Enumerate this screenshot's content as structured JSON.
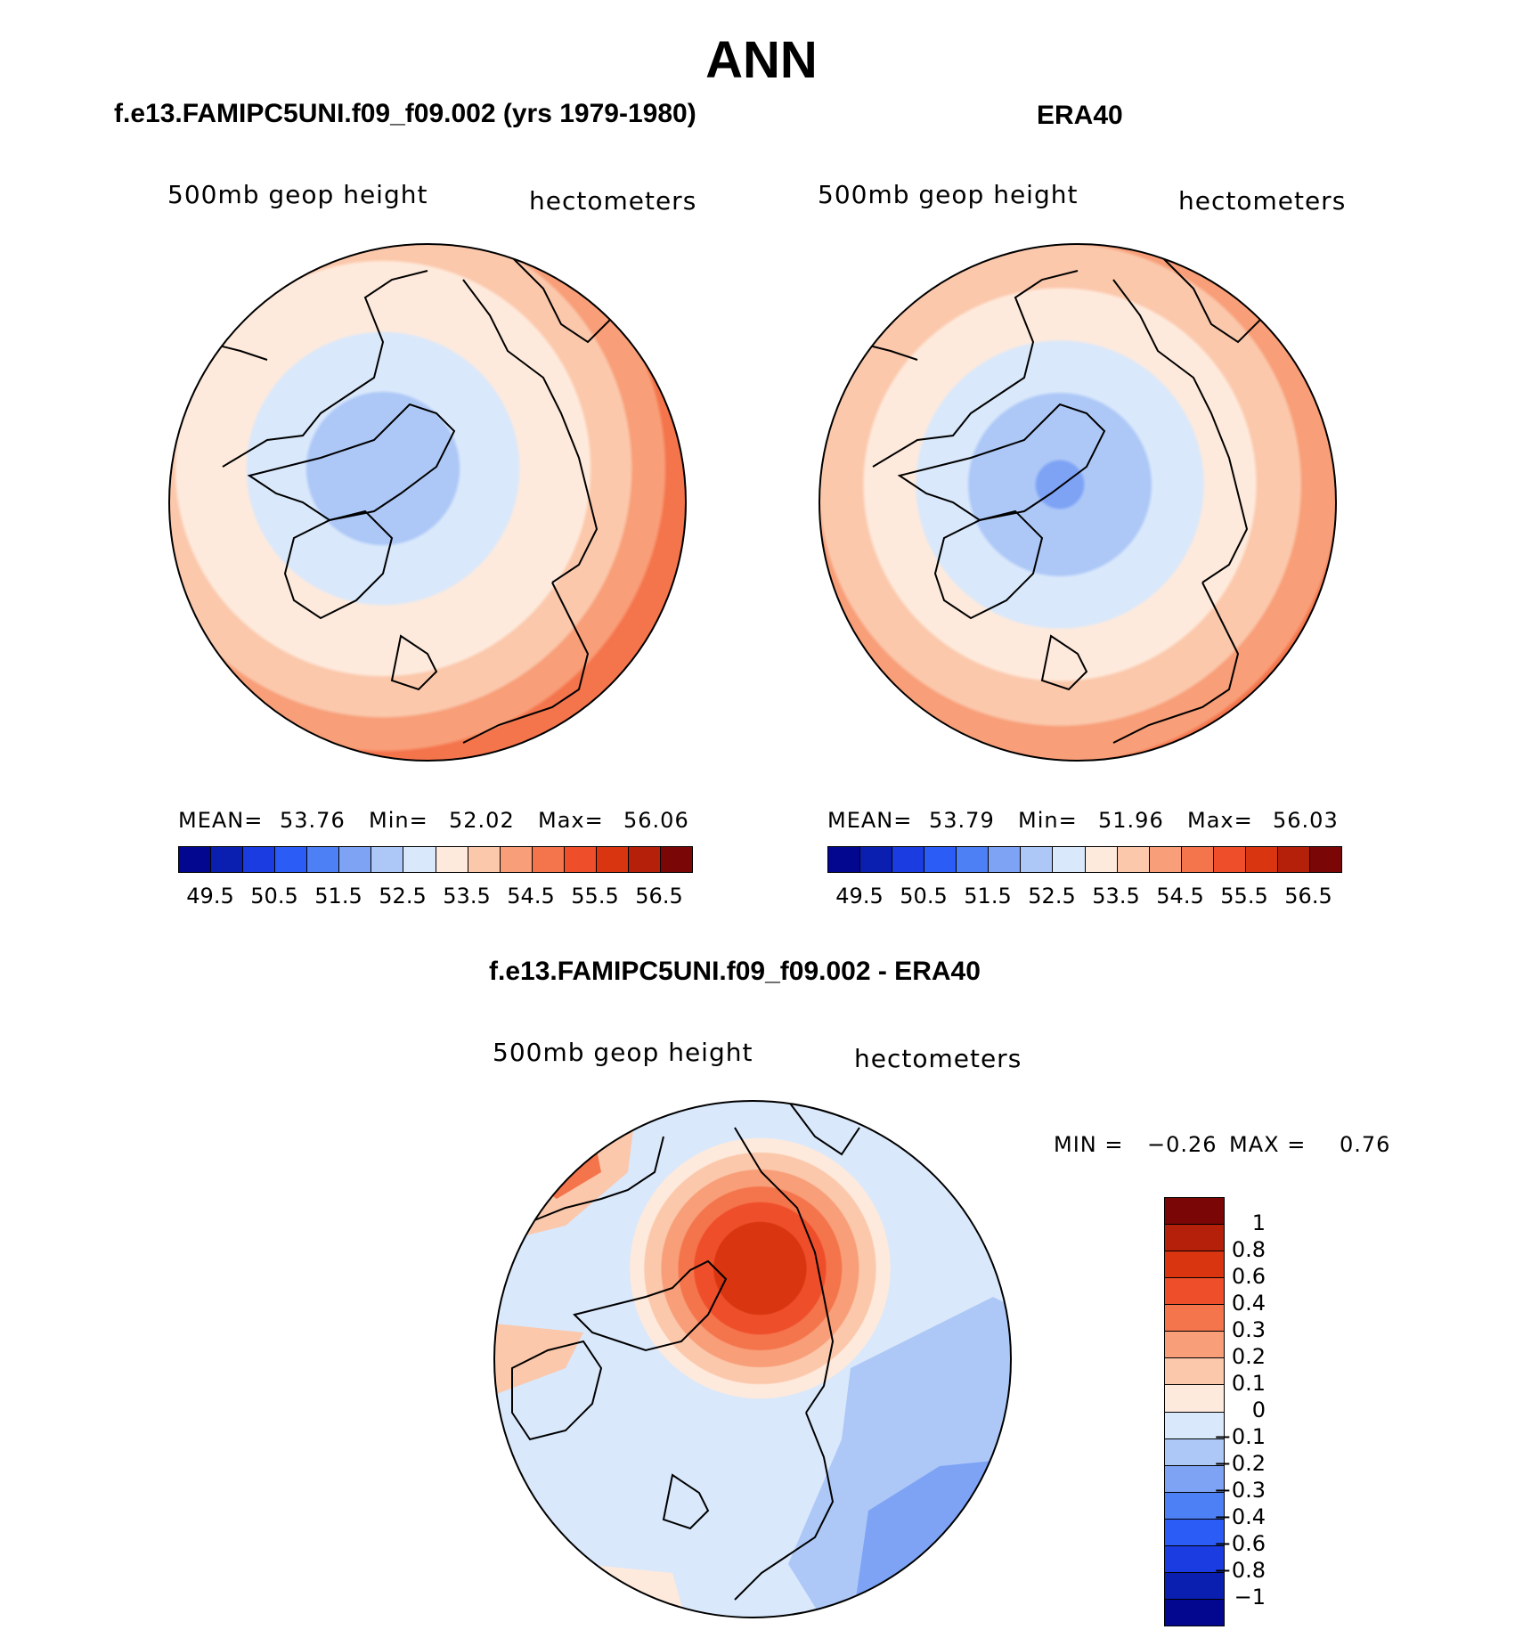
{
  "main_title": "ANN",
  "panels": [
    {
      "title": "f.e13.FAMIPC5UNI.f09_f09.002 (yrs 1979-1980)",
      "variable": "500mb geop height",
      "units": "hectometers",
      "stats": {
        "mean_label": "MEAN=",
        "mean": "53.76",
        "min_label": "Min=",
        "min": "52.02",
        "max_label": "Max=",
        "max": "56.06"
      },
      "map_regions": "central-low-over-canadian-arctic"
    },
    {
      "title": "ERA40",
      "variable": "500mb geop height",
      "units": "hectometers",
      "stats": {
        "mean_label": "MEAN=",
        "mean": "53.79",
        "min_label": "Min=",
        "min": "51.96",
        "max_label": "Max=",
        "max": "56.03"
      },
      "map_regions": "central-low-over-pole"
    },
    {
      "title": "f.e13.FAMIPC5UNI.f09_f09.002 - ERA40",
      "variable": "500mb geop height",
      "units": "hectometers",
      "stats": {
        "min_label": "MIN =",
        "min": "−0.26",
        "max_label": "MAX =",
        "max": "0.76"
      }
    }
  ],
  "abs_colorbar": {
    "colors": [
      "#03078f",
      "#0a1fb0",
      "#1a3ce0",
      "#2b5cf6",
      "#4d7ff5",
      "#7ea3f5",
      "#adc8f7",
      "#d9e8fb",
      "#feeadc",
      "#fbc8ac",
      "#f89e78",
      "#f4744c",
      "#ef4e2b",
      "#d83510",
      "#b5200a",
      "#7a0606"
    ],
    "tick_labels": [
      "49.5",
      "50.5",
      "51.5",
      "52.5",
      "53.5",
      "54.5",
      "55.5",
      "56.5"
    ]
  },
  "diff_colorbar": {
    "colors": [
      "#7a0606",
      "#b5200a",
      "#d83510",
      "#ef4e2b",
      "#f4744c",
      "#f89e78",
      "#fbc8ac",
      "#feeadc",
      "#d9e8fb",
      "#adc8f7",
      "#7ea3f5",
      "#4d7ff5",
      "#2b5cf6",
      "#1a3ce0",
      "#0a1fb0",
      "#03078f"
    ],
    "tick_labels": [
      "1",
      "0.8",
      "0.6",
      "0.4",
      "0.3",
      "0.2",
      "0.1",
      "0",
      "−0.1",
      "−0.2",
      "−0.3",
      "−0.4",
      "−0.6",
      "−0.8",
      "−1"
    ]
  }
}
